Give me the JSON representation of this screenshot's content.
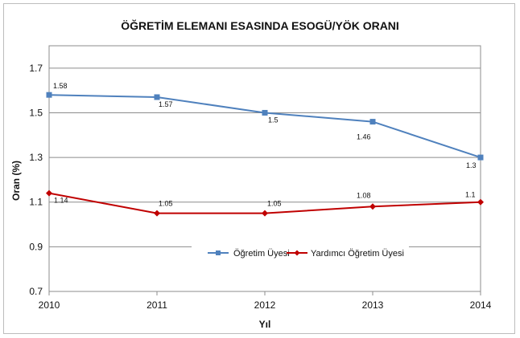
{
  "chart_data": {
    "type": "line",
    "title": "ÖĞRETİM ELEMANI ESASINDA ESOGÜ/YÖK ORANI",
    "xlabel": "Yıl",
    "ylabel": "Oran (%)",
    "categories": [
      "2010",
      "2011",
      "2012",
      "2013",
      "2014"
    ],
    "y_ticks": [
      "0.7",
      "0.9",
      "1.1",
      "1.3",
      "1.5",
      "1.7"
    ],
    "ylim": [
      0.7,
      1.8
    ],
    "grid": "horizontal",
    "legend_position": "bottom-center-inside",
    "series": [
      {
        "name": "Öğretim Üyesi",
        "values": [
          1.58,
          1.57,
          1.5,
          1.46,
          1.3
        ],
        "labels": [
          "1.58",
          "1.57",
          "1.5",
          "1.46",
          "1.3"
        ],
        "color": "#4f81bd",
        "marker": "square"
      },
      {
        "name": "Yardımcı Öğretim Üyesi",
        "values": [
          1.14,
          1.05,
          1.05,
          1.08,
          1.1
        ],
        "labels": [
          "1.14",
          "1.05",
          "1.05",
          "1.08",
          "1.1"
        ],
        "color": "#c00000",
        "marker": "diamond"
      }
    ]
  }
}
